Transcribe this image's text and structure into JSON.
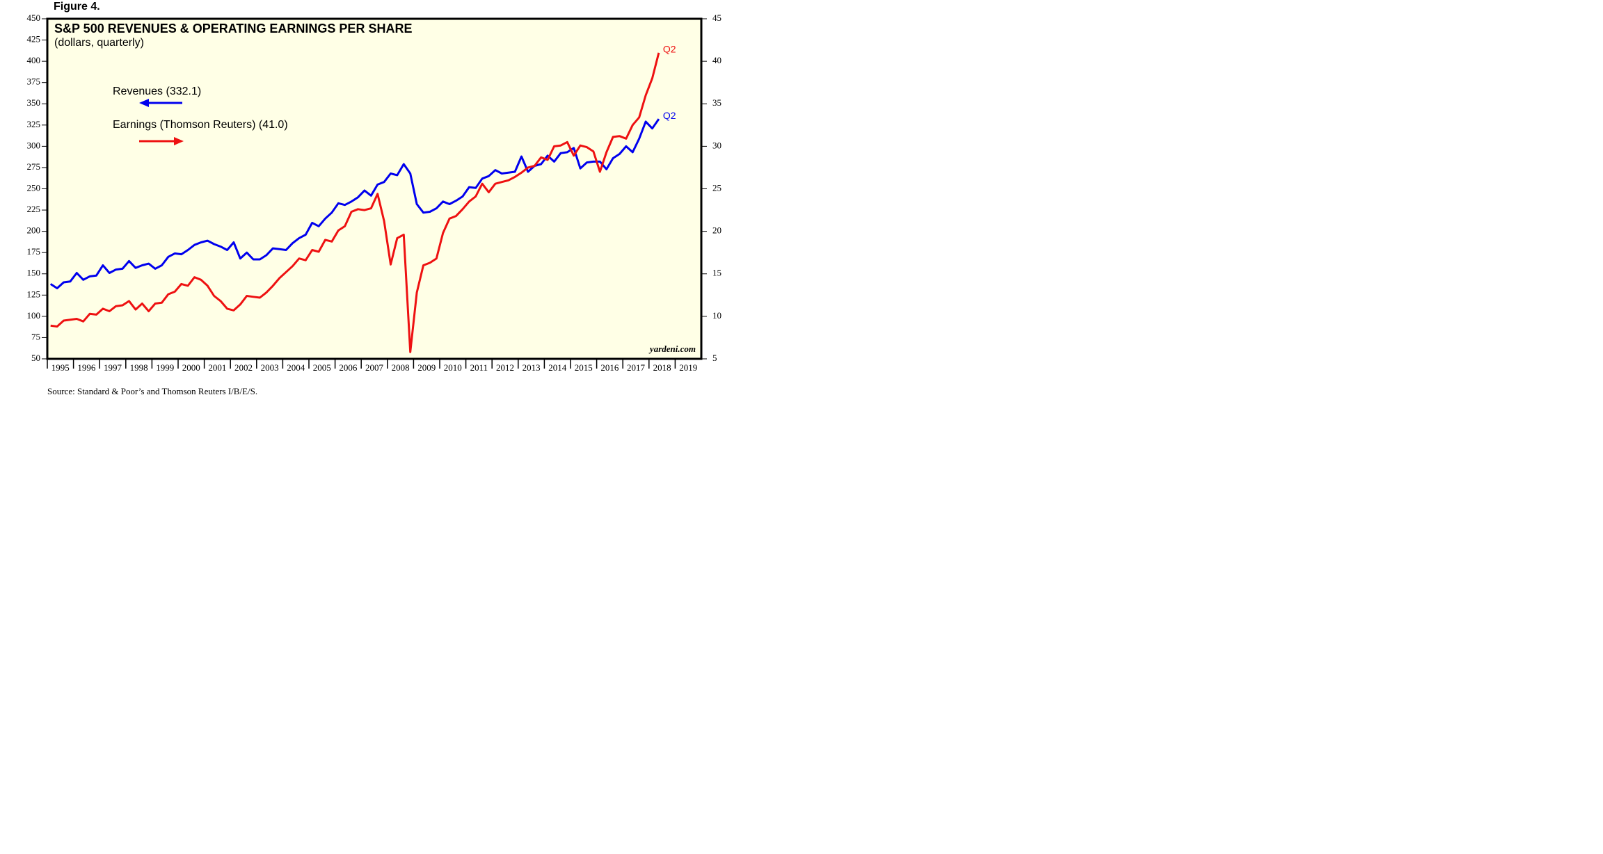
{
  "chart_data": {
    "type": "line",
    "figure_label": "Figure 4.",
    "title": "S&P 500 REVENUES & OPERATING EARNINGS PER SHARE",
    "subtitle": "(dollars, quarterly)",
    "source": "Source: Standard & Poor’s and Thomson Reuters I/B/E/S.",
    "watermark": "yardeni.com",
    "x": [
      1995.125,
      1995.375,
      1995.625,
      1995.875,
      1996.125,
      1996.375,
      1996.625,
      1996.875,
      1997.125,
      1997.375,
      1997.625,
      1997.875,
      1998.125,
      1998.375,
      1998.625,
      1998.875,
      1999.125,
      1999.375,
      1999.625,
      1999.875,
      2000.125,
      2000.375,
      2000.625,
      2000.875,
      2001.125,
      2001.375,
      2001.625,
      2001.875,
      2002.125,
      2002.375,
      2002.625,
      2002.875,
      2003.125,
      2003.375,
      2003.625,
      2003.875,
      2004.125,
      2004.375,
      2004.625,
      2004.875,
      2005.125,
      2005.375,
      2005.625,
      2005.875,
      2006.125,
      2006.375,
      2006.625,
      2006.875,
      2007.125,
      2007.375,
      2007.625,
      2007.875,
      2008.125,
      2008.375,
      2008.625,
      2008.875,
      2009.125,
      2009.375,
      2009.625,
      2009.875,
      2010.125,
      2010.375,
      2010.625,
      2010.875,
      2011.125,
      2011.375,
      2011.625,
      2011.875,
      2012.125,
      2012.375,
      2012.625,
      2012.875,
      2013.125,
      2013.375,
      2013.625,
      2013.875,
      2014.125,
      2014.375,
      2014.625,
      2014.875,
      2015.125,
      2015.375,
      2015.625,
      2015.875,
      2016.125,
      2016.375,
      2016.625,
      2016.875,
      2017.125,
      2017.375,
      2017.625,
      2017.875,
      2018.125,
      2018.375
    ],
    "xlim": [
      1995,
      2020
    ],
    "xticks": [
      1995,
      1996,
      1997,
      1998,
      1999,
      2000,
      2001,
      2002,
      2003,
      2004,
      2005,
      2006,
      2007,
      2008,
      2009,
      2010,
      2011,
      2012,
      2013,
      2014,
      2015,
      2016,
      2017,
      2018,
      2019
    ],
    "ylim": [
      50,
      450
    ],
    "yticks": [
      50,
      75,
      100,
      125,
      150,
      175,
      200,
      225,
      250,
      275,
      300,
      325,
      350,
      375,
      400,
      425,
      450
    ],
    "y2lim": [
      5,
      45
    ],
    "y2ticks": [
      5,
      10,
      15,
      20,
      25,
      30,
      35,
      40,
      45
    ],
    "series": [
      {
        "name": "Revenues (332.1)",
        "color": "#0000ee",
        "axis": "y",
        "end_label": "Q2",
        "values": [
          138,
          133,
          140,
          141,
          151,
          143,
          147,
          148,
          160,
          151,
          155,
          156,
          165,
          157,
          160,
          162,
          156,
          160,
          170,
          174,
          173,
          178,
          184,
          187,
          189,
          185,
          182,
          178,
          187,
          168,
          175,
          167,
          167,
          172,
          180,
          179,
          178,
          186,
          192,
          196,
          210,
          206,
          215,
          222,
          233,
          231,
          235,
          240,
          248,
          242,
          255,
          258,
          268,
          266,
          279,
          268,
          232,
          222,
          223,
          227,
          235,
          232,
          236,
          241,
          252,
          251,
          262,
          265,
          272,
          268,
          269,
          270,
          288,
          270,
          277,
          279,
          289,
          282,
          292,
          293,
          298,
          274,
          281,
          282,
          282,
          273,
          286,
          291,
          300,
          293,
          309,
          329,
          321,
          332.1
        ]
      },
      {
        "name": "Earnings (Thomson Reuters) (41.0)",
        "color": "#ee1111",
        "axis": "y2",
        "end_label": "Q2",
        "values": [
          8.9,
          8.8,
          9.5,
          9.6,
          9.7,
          9.4,
          10.3,
          10.2,
          10.9,
          10.6,
          11.2,
          11.3,
          11.8,
          10.8,
          11.5,
          10.6,
          11.5,
          11.6,
          12.6,
          12.9,
          13.8,
          13.6,
          14.6,
          14.3,
          13.6,
          12.4,
          11.8,
          10.9,
          10.7,
          11.4,
          12.4,
          12.3,
          12.2,
          12.8,
          13.6,
          14.5,
          15.2,
          15.9,
          16.8,
          16.6,
          17.8,
          17.6,
          19.0,
          18.8,
          20.1,
          20.6,
          22.3,
          22.6,
          22.5,
          22.7,
          24.4,
          21.2,
          16.1,
          19.2,
          19.6,
          5.8,
          12.8,
          16.0,
          16.3,
          16.8,
          19.8,
          21.5,
          21.8,
          22.6,
          23.5,
          24.1,
          25.6,
          24.6,
          25.6,
          25.8,
          26.0,
          26.4,
          26.9,
          27.5,
          27.7,
          28.7,
          28.4,
          30.0,
          30.1,
          30.5,
          28.9,
          30.1,
          29.9,
          29.4,
          27.0,
          29.3,
          31.1,
          31.2,
          30.9,
          32.5,
          33.4,
          36.0,
          38.0,
          41.0
        ]
      }
    ]
  }
}
